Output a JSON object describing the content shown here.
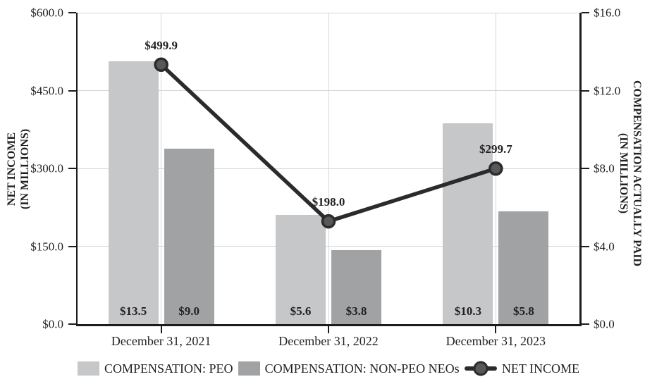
{
  "chart_data": {
    "type": "combo_bar_line",
    "categories": [
      "December 31, 2021",
      "December 31, 2022",
      "December 31, 2023"
    ],
    "series": [
      {
        "name": "COMPENSATION: PEO",
        "type": "bar",
        "axis": "right",
        "values": [
          13.5,
          5.6,
          10.3
        ],
        "labels": [
          "$13.5",
          "$5.6",
          "$10.3"
        ],
        "color": "#c6c7c9"
      },
      {
        "name": "COMPENSATION: NON-PEO NEOs",
        "type": "bar",
        "axis": "right",
        "values": [
          9.0,
          3.8,
          5.8
        ],
        "labels": [
          "$9.0",
          "$3.8",
          "$5.8"
        ],
        "color": "#a0a2a4"
      },
      {
        "name": "NET INCOME",
        "type": "line",
        "axis": "left",
        "values": [
          499.9,
          198.0,
          299.7
        ],
        "labels": [
          "$499.9",
          "$198.0",
          "$299.7"
        ],
        "color": "#2b2b2b",
        "marker_fill": "#57585a"
      }
    ],
    "left_axis": {
      "title_line1": "NET INCOME",
      "title_line2": "(IN MILLIONS)",
      "min": 0,
      "max": 600,
      "step": 150,
      "tick_labels": [
        "$0.0",
        "$150.0",
        "$300.0",
        "$450.0",
        "$600.0"
      ]
    },
    "right_axis": {
      "title_line1": "COMPENSATION ACTUALLY PAID",
      "title_line2": "(IN MILLIONS)",
      "min": 0,
      "max": 16,
      "step": 4,
      "tick_labels": [
        "$0.0",
        "$4.0",
        "$8.0",
        "$12.0",
        "$16.0"
      ]
    },
    "grid": true,
    "legend_position": "bottom"
  },
  "colors": {
    "bar_peo": "#c6c7c9",
    "bar_non_peo": "#a0a2a4",
    "line": "#2b2b2b",
    "marker_fill": "#57585a",
    "gridline": "#d6d6d6",
    "axis": "#1c1c1c",
    "text": "#231f20"
  }
}
